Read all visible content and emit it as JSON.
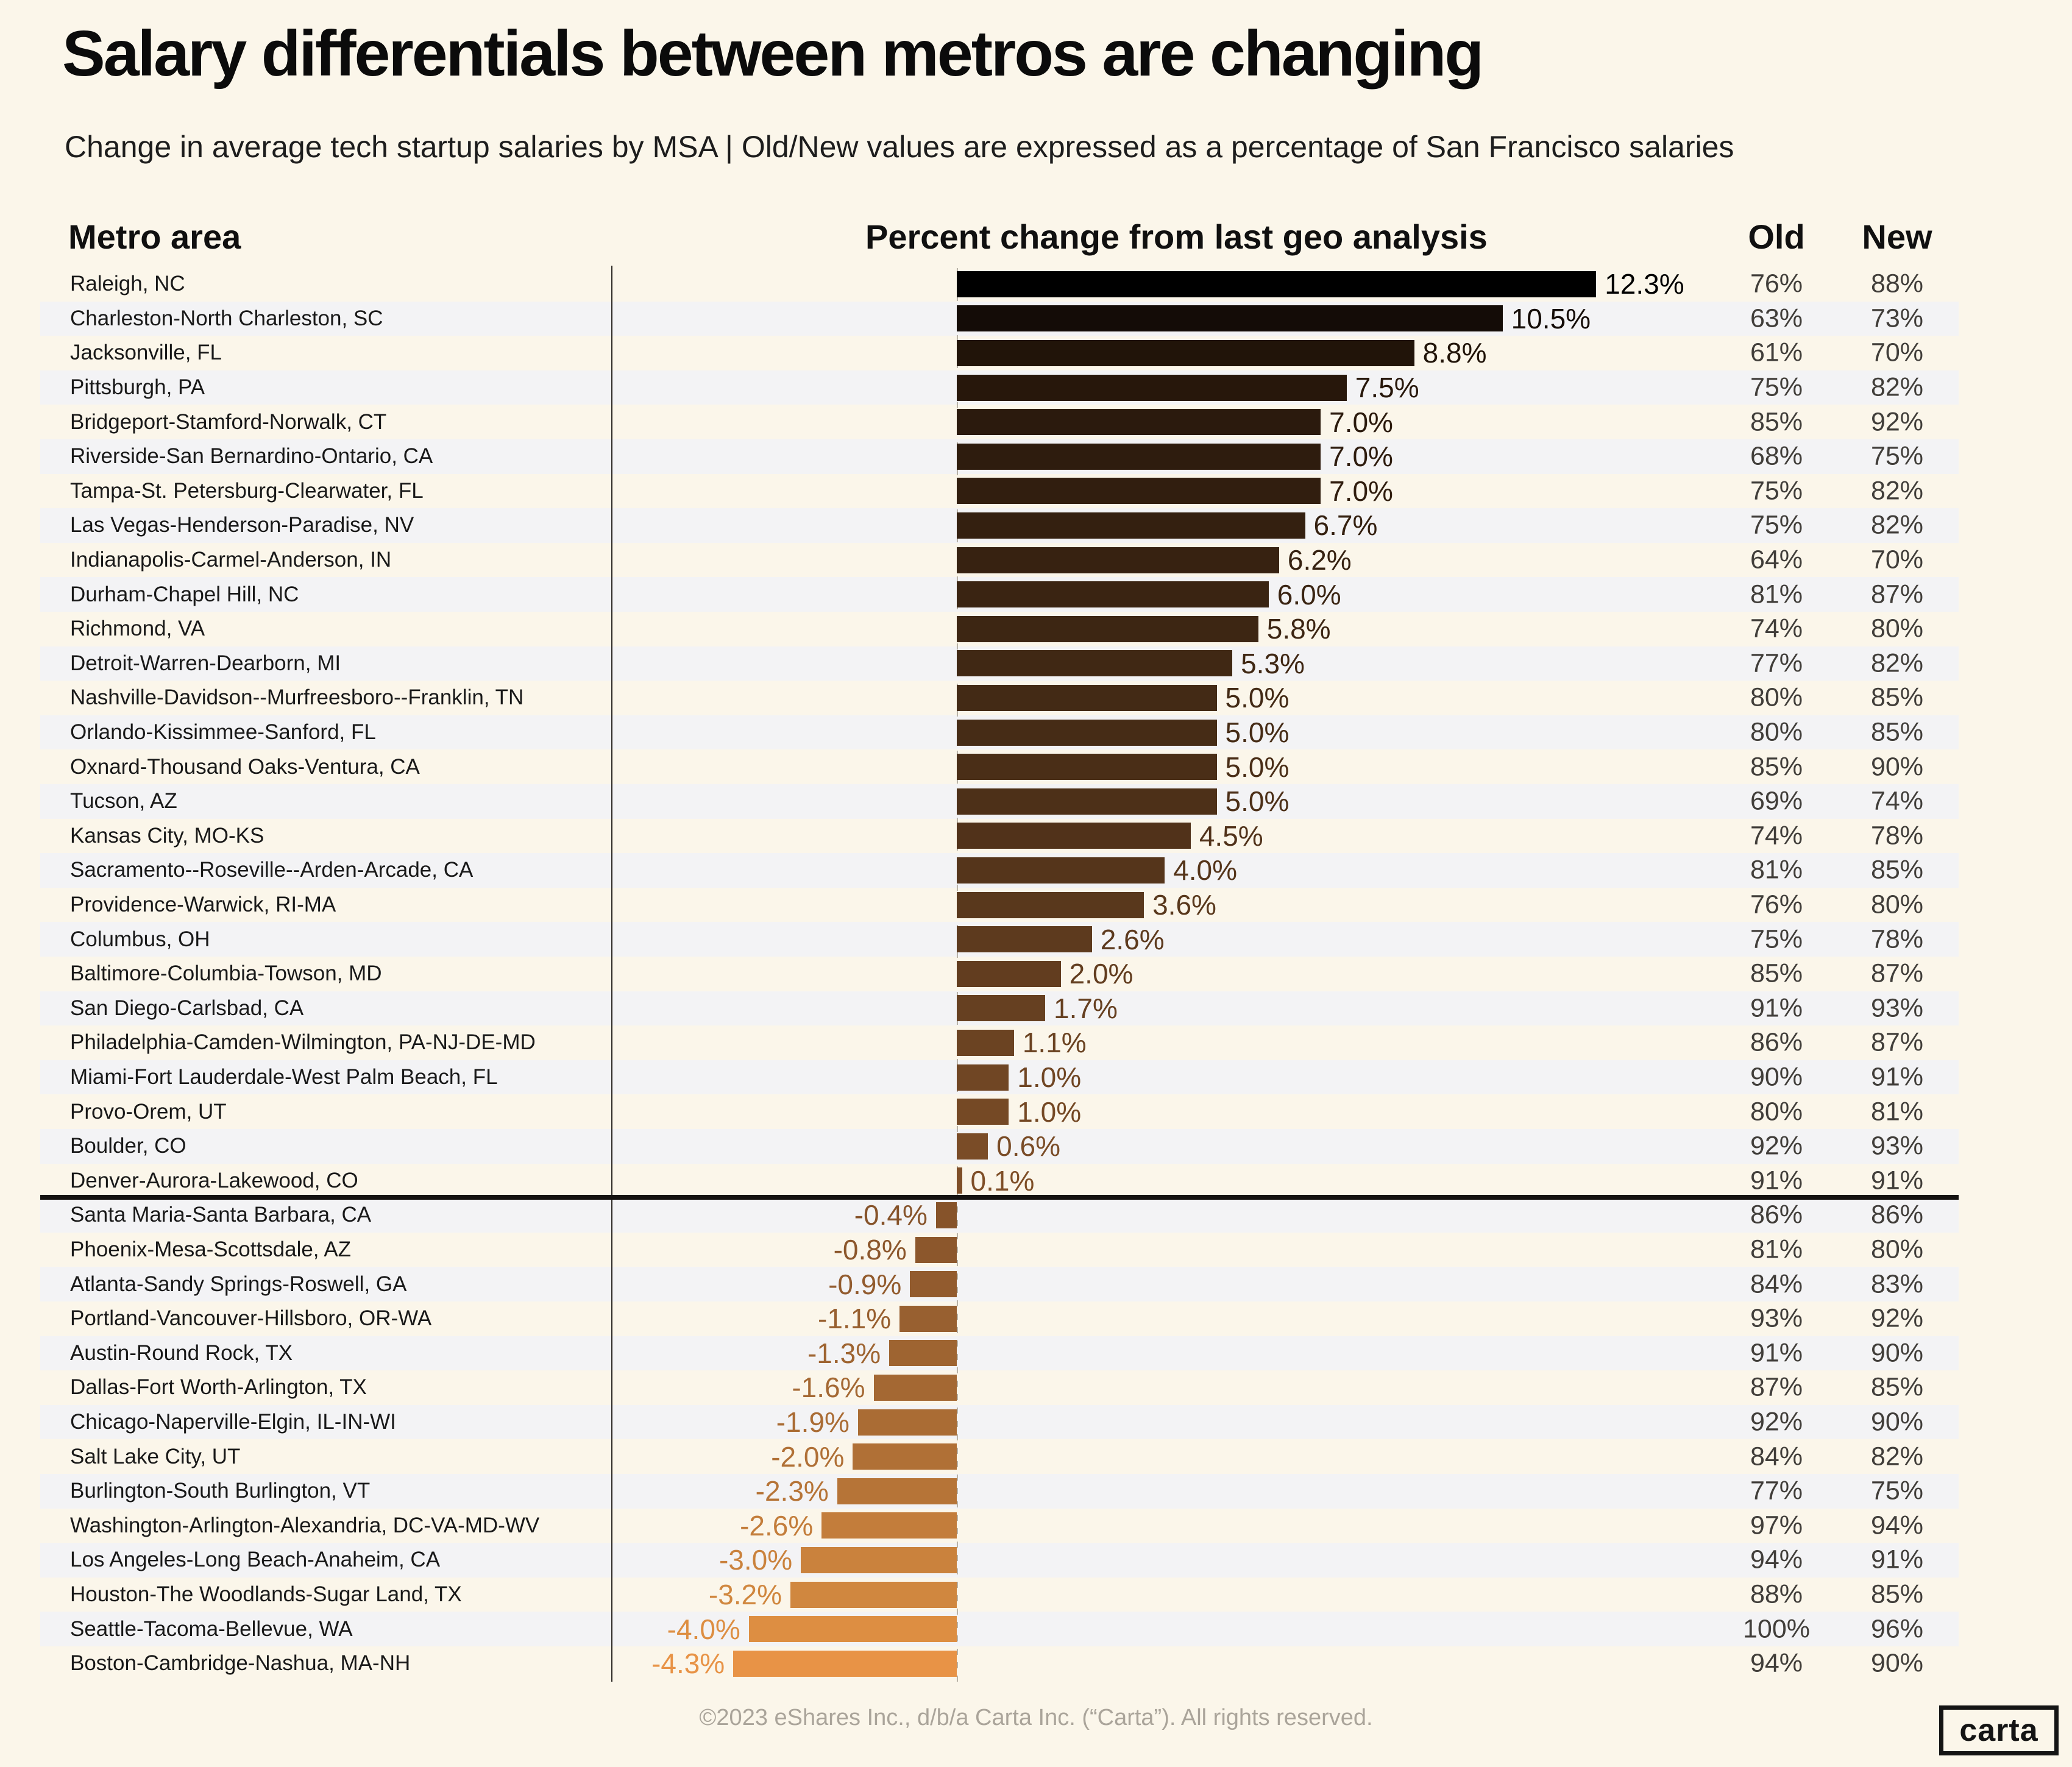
{
  "title": "Salary differentials between metros are changing",
  "subtitle": "Change in average tech startup salaries by MSA | Old/New values are expressed as a percentage of San Francisco salaries",
  "columns": {
    "metro": "Metro area",
    "change": "Percent change from last geo analysis",
    "old": "Old",
    "new": "New"
  },
  "footer": "©2023 eShares Inc., d/b/a Carta Inc. (“Carta”). All rights reserved.",
  "logo": "carta",
  "theme": {
    "background": "#fbf6ea",
    "zebra_band": "#f3f3f5",
    "divider": "#141210",
    "text_dark": "#191919",
    "text_gray": "#413e3a",
    "footer_gray": "#aaa49a",
    "gradient_start": "#000000",
    "gradient_end": "#e89346"
  },
  "chart_data": {
    "type": "bar",
    "orientation": "horizontal",
    "title": "Salary differentials between metros are changing",
    "subtitle": "Change in average tech startup salaries by MSA | Old/New values are expressed as a percentage of San Francisco salaries",
    "xlabel": "Percent change from last geo analysis",
    "value_unit": "%",
    "xlim": [
      -4.3,
      12.3
    ],
    "grid": false,
    "zero_line": "dashed",
    "extra_columns": [
      "Old",
      "New"
    ],
    "rows": [
      {
        "metro": "Raleigh, NC",
        "change": 12.3,
        "old": 76,
        "new": 88,
        "color": "#000000"
      },
      {
        "metro": "Charleston-North Charleston, SC",
        "change": 10.5,
        "old": 63,
        "new": 73,
        "color": "#140c07"
      },
      {
        "metro": "Jacksonville, FL",
        "change": 8.8,
        "old": 61,
        "new": 70,
        "color": "#211409"
      },
      {
        "metro": "Pittsburgh, PA",
        "change": 7.5,
        "old": 75,
        "new": 82,
        "color": "#27170b"
      },
      {
        "metro": "Bridgeport-Stamford-Norwalk, CT",
        "change": 7.0,
        "old": 85,
        "new": 92,
        "color": "#2b1a0d"
      },
      {
        "metro": "Riverside-San Bernardino-Ontario, CA",
        "change": 7.0,
        "old": 68,
        "new": 75,
        "color": "#2e1c0e"
      },
      {
        "metro": "Tampa-St. Petersburg-Clearwater, FL",
        "change": 7.0,
        "old": 75,
        "new": 82,
        "color": "#311e0f"
      },
      {
        "metro": "Las Vegas-Henderson-Paradise, NV",
        "change": 6.7,
        "old": 75,
        "new": 82,
        "color": "#342010"
      },
      {
        "metro": "Indianapolis-Carmel-Anderson, IN",
        "change": 6.2,
        "old": 64,
        "new": 70,
        "color": "#372211"
      },
      {
        "metro": "Durham-Chapel Hill, NC",
        "change": 6.0,
        "old": 81,
        "new": 87,
        "color": "#3a2412"
      },
      {
        "metro": "Richmond, VA",
        "change": 5.8,
        "old": 74,
        "new": 80,
        "color": "#3d2613"
      },
      {
        "metro": "Detroit-Warren-Dearborn, MI",
        "change": 5.3,
        "old": 77,
        "new": 82,
        "color": "#402814"
      },
      {
        "metro": "Nashville-Davidson--Murfreesboro--Franklin, TN",
        "change": 5.0,
        "old": 80,
        "new": 85,
        "color": "#432a15"
      },
      {
        "metro": "Orlando-Kissimmee-Sanford, FL",
        "change": 5.0,
        "old": 80,
        "new": 85,
        "color": "#462c16"
      },
      {
        "metro": "Oxnard-Thousand Oaks-Ventura, CA",
        "change": 5.0,
        "old": 85,
        "new": 90,
        "color": "#4a2e17"
      },
      {
        "metro": "Tucson, AZ",
        "change": 5.0,
        "old": 69,
        "new": 74,
        "color": "#4d3018"
      },
      {
        "metro": "Kansas City, MO-KS",
        "change": 4.5,
        "old": 74,
        "new": 78,
        "color": "#51321a"
      },
      {
        "metro": "Sacramento--Roseville--Arden-Arcade, CA",
        "change": 4.0,
        "old": 81,
        "new": 85,
        "color": "#55351b"
      },
      {
        "metro": "Providence-Warwick, RI-MA",
        "change": 3.6,
        "old": 76,
        "new": 80,
        "color": "#59381c"
      },
      {
        "metro": "Columbus, OH",
        "change": 2.6,
        "old": 75,
        "new": 78,
        "color": "#5d3a1e"
      },
      {
        "metro": "Baltimore-Columbia-Towson, MD",
        "change": 2.0,
        "old": 85,
        "new": 87,
        "color": "#623d1f"
      },
      {
        "metro": "San Diego-Carlsbad, CA",
        "change": 1.7,
        "old": 91,
        "new": 93,
        "color": "#664021"
      },
      {
        "metro": "Philadelphia-Camden-Wilmington, PA-NJ-DE-MD",
        "change": 1.1,
        "old": 86,
        "new": 87,
        "color": "#6b4322"
      },
      {
        "metro": "Miami-Fort Lauderdale-West Palm Beach, FL",
        "change": 1.0,
        "old": 90,
        "new": 91,
        "color": "#704624"
      },
      {
        "metro": "Provo-Orem, UT",
        "change": 1.0,
        "old": 80,
        "new": 81,
        "color": "#754925"
      },
      {
        "metro": "Boulder, CO",
        "change": 0.6,
        "old": 92,
        "new": 93,
        "color": "#7a4c27"
      },
      {
        "metro": "Denver-Aurora-Lakewood, CO",
        "change": 0.1,
        "old": 91,
        "new": 91,
        "color": "#7f4f28"
      },
      {
        "metro": "Santa Maria-Santa Barbara, CA",
        "change": -0.4,
        "old": 86,
        "new": 86,
        "color": "#86532a"
      },
      {
        "metro": "Phoenix-Mesa-Scottsdale, AZ",
        "change": -0.8,
        "old": 81,
        "new": 80,
        "color": "#8c572c"
      },
      {
        "metro": "Atlanta-Sandy Springs-Roswell, GA",
        "change": -0.9,
        "old": 84,
        "new": 83,
        "color": "#925b2e"
      },
      {
        "metro": "Portland-Vancouver-Hillsboro, OR-WA",
        "change": -1.1,
        "old": 93,
        "new": 92,
        "color": "#986030"
      },
      {
        "metro": "Austin-Round Rock, TX",
        "change": -1.3,
        "old": 91,
        "new": 90,
        "color": "#9e6431"
      },
      {
        "metro": "Dallas-Fort Worth-Arlington, TX",
        "change": -1.6,
        "old": 87,
        "new": 85,
        "color": "#a46833"
      },
      {
        "metro": "Chicago-Naperville-Elgin, IL-IN-WI",
        "change": -1.9,
        "old": 92,
        "new": 90,
        "color": "#aa6c34"
      },
      {
        "metro": "Salt Lake City, UT",
        "change": -2.0,
        "old": 84,
        "new": 82,
        "color": "#b07036"
      },
      {
        "metro": "Burlington-South Burlington, VT",
        "change": -2.3,
        "old": 77,
        "new": 75,
        "color": "#b67437"
      },
      {
        "metro": "Washington-Arlington-Alexandria, DC-VA-MD-WV",
        "change": -2.6,
        "old": 97,
        "new": 94,
        "color": "#c37d3b"
      },
      {
        "metro": "Los Angeles-Long Beach-Anaheim, CA",
        "change": -3.0,
        "old": 94,
        "new": 91,
        "color": "#ca823d"
      },
      {
        "metro": "Houston-The Woodlands-Sugar Land, TX",
        "change": -3.2,
        "old": 88,
        "new": 85,
        "color": "#d0873f"
      },
      {
        "metro": "Seattle-Tacoma-Bellevue, WA",
        "change": -4.0,
        "old": 100,
        "new": 96,
        "color": "#dd8e42"
      },
      {
        "metro": "Boston-Cambridge-Nashua, MA-NH",
        "change": -4.3,
        "old": 94,
        "new": 90,
        "color": "#e89346"
      }
    ]
  }
}
